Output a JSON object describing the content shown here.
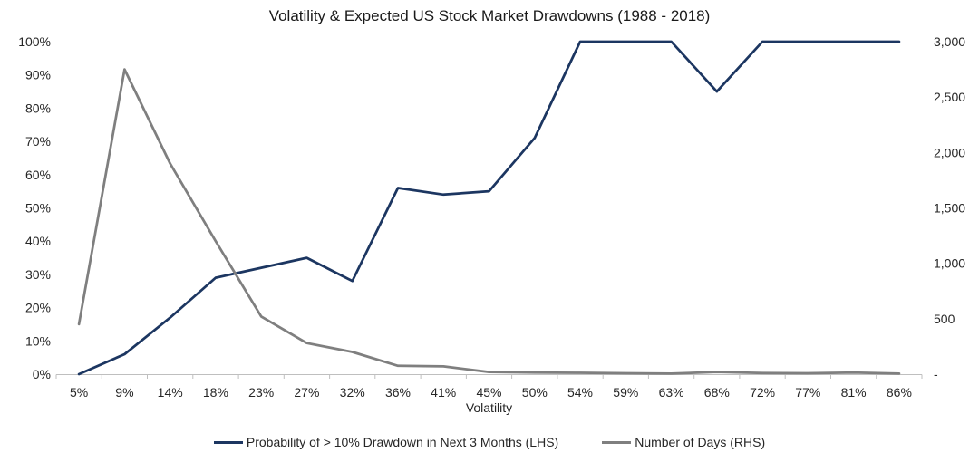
{
  "title": "Volatility & Expected US Stock Market Drawdowns (1988 - 2018)",
  "x_axis_title": "Volatility",
  "chart_data": {
    "type": "line",
    "title": "Volatility & Expected US Stock Market Drawdowns (1988 - 2018)",
    "xlabel": "Volatility",
    "grid": false,
    "legend_position": "bottom",
    "categories": [
      "5%",
      "9%",
      "14%",
      "18%",
      "23%",
      "27%",
      "32%",
      "36%",
      "41%",
      "45%",
      "50%",
      "54%",
      "59%",
      "63%",
      "68%",
      "72%",
      "77%",
      "81%",
      "86%"
    ],
    "series": [
      {
        "id": "probability-drawdown-line",
        "name": "Probability of > 10% Drawdown in Next 3 Months (LHS)",
        "yaxis": "left",
        "color": "#1c3661",
        "values": [
          0,
          6,
          17,
          29,
          32,
          35,
          28,
          56,
          54,
          55,
          71,
          100,
          100,
          100,
          85,
          100,
          100,
          100,
          100
        ]
      },
      {
        "id": "number-of-days-line",
        "name": "Number of Days (RHS)",
        "yaxis": "right",
        "color": "#7f7f7f",
        "values": [
          450,
          2750,
          1900,
          1200,
          520,
          280,
          200,
          75,
          70,
          20,
          15,
          12,
          8,
          5,
          20,
          10,
          8,
          15,
          5
        ]
      }
    ],
    "left_axis": {
      "min": 0,
      "max": 100,
      "step": 10,
      "tick_labels": [
        "0%",
        "10%",
        "20%",
        "30%",
        "40%",
        "50%",
        "60%",
        "70%",
        "80%",
        "90%",
        "100%"
      ]
    },
    "right_axis": {
      "min": 0,
      "max": 3000,
      "step": 500,
      "tick_labels": [
        "-",
        "500",
        "1,000",
        "1,500",
        "2,000",
        "2,500",
        "3,000"
      ]
    },
    "axis_color": "#bfbfbf"
  }
}
